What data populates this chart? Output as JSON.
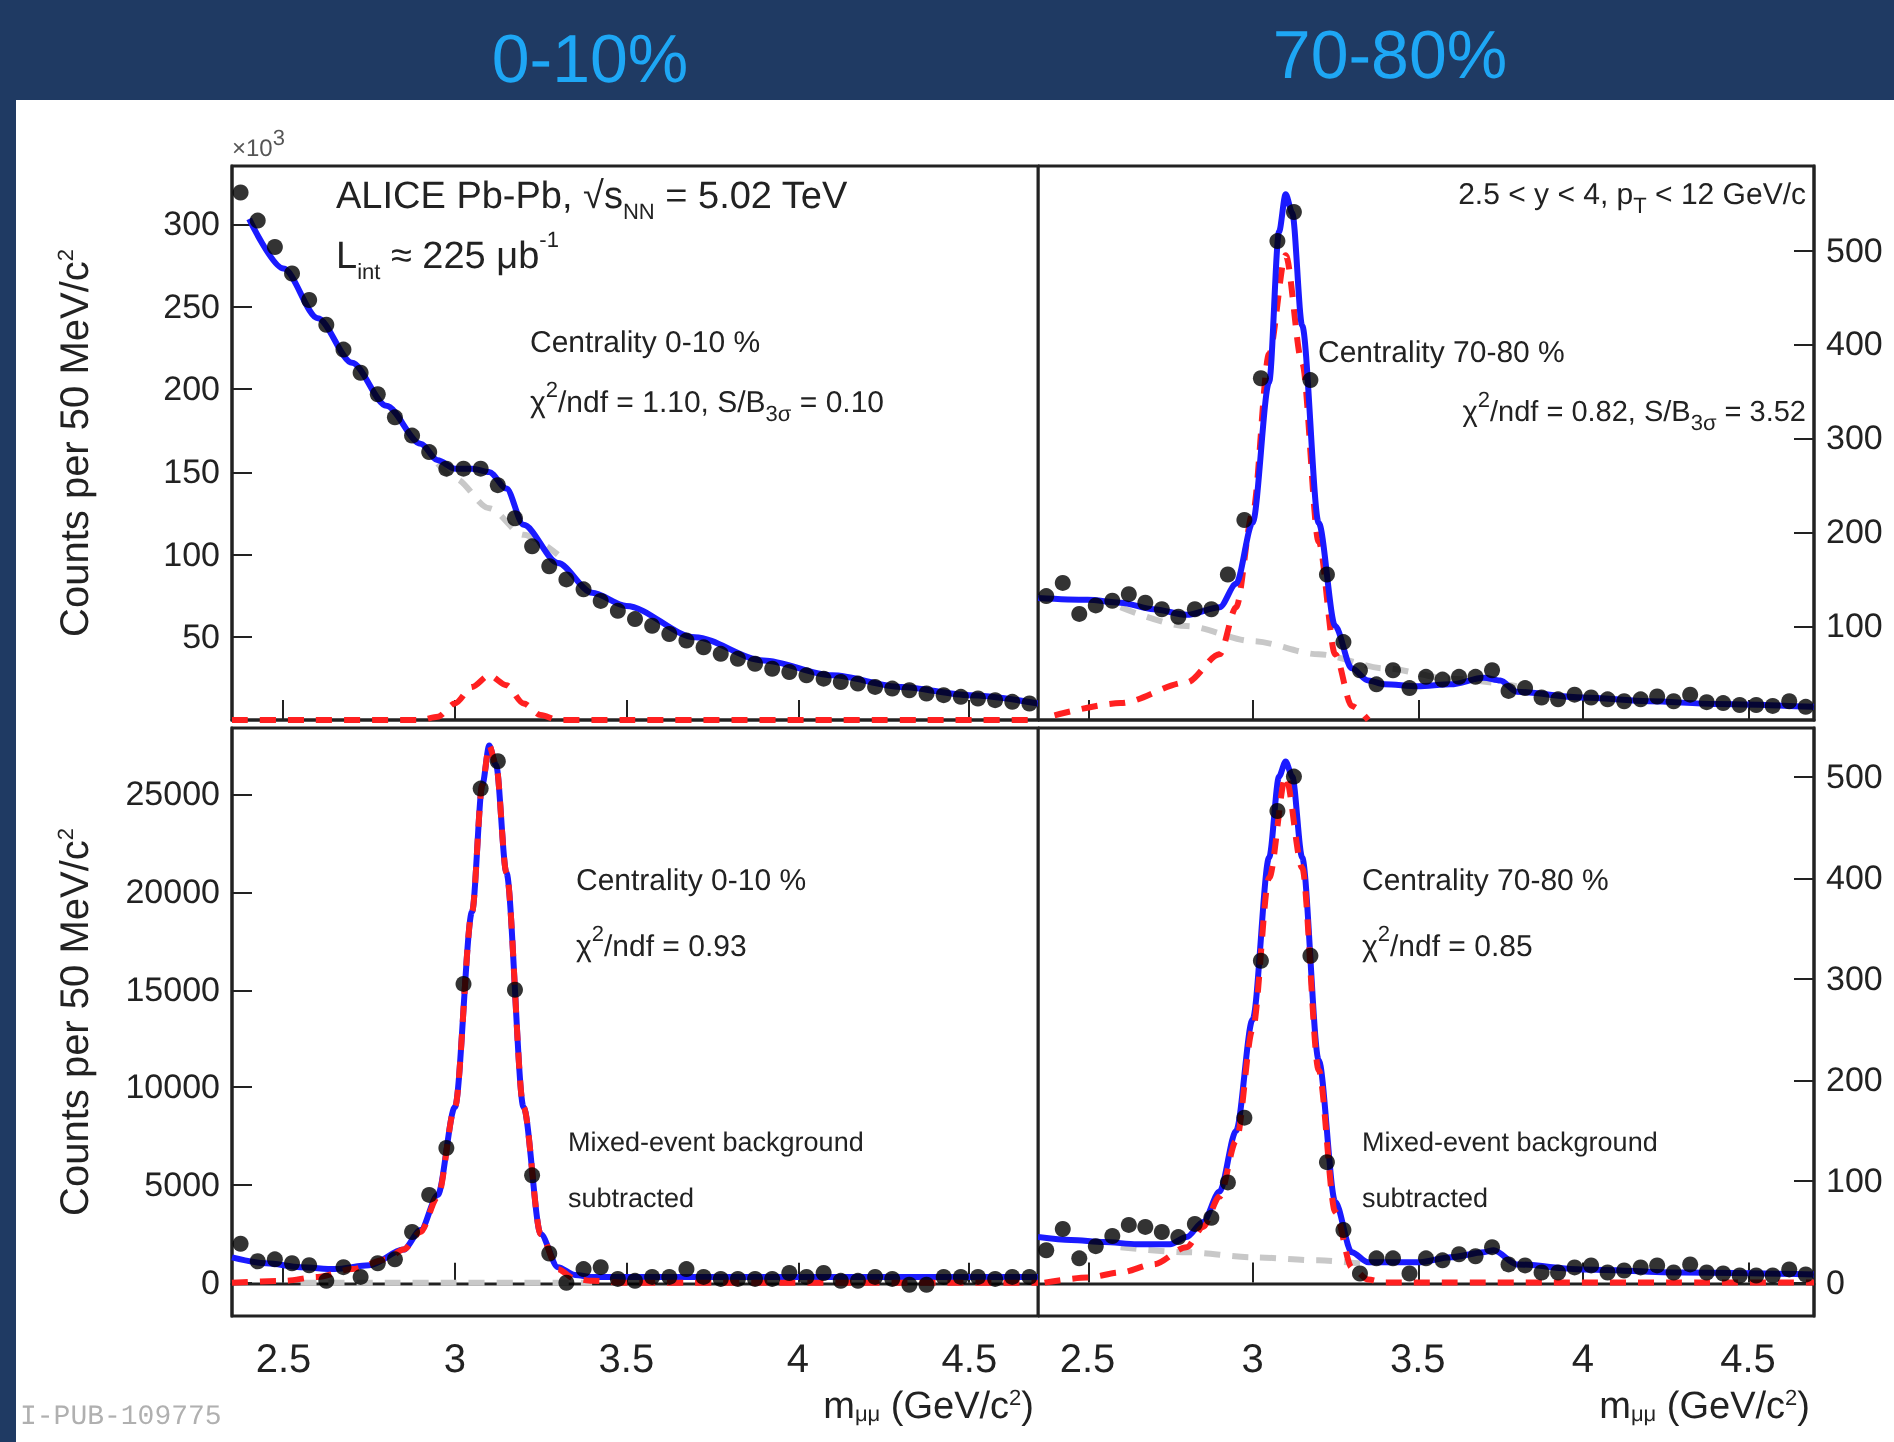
{
  "chart_data": [
    {
      "type": "scatter",
      "title": "0-10%",
      "ylabel": "Counts per 50 MeV/c$^{2}$",
      "tick_labels": "y",
      "annotations": [
        "ALICE Pb-Pb, √s$_{NN}$ = 5.02 TeV",
        "L$_{int}$ ≈ 225 μb$^{-1}$",
        "Centrality 0-10 %",
        "χ$^{2}$/ndf = 1.10, S/B$_{3σ}$ = 0.10",
        "×10$^{3}$"
      ],
      "xlim": [
        2.35,
        4.7
      ],
      "xticks": [
        2.5,
        3,
        3.5,
        4,
        4.5
      ],
      "ylim": [
        0,
        335
      ],
      "yticks": [
        50,
        100,
        150,
        200,
        250,
        300
      ],
      "x": [
        2.375,
        2.425,
        2.475,
        2.525,
        2.575,
        2.625,
        2.675,
        2.725,
        2.775,
        2.825,
        2.875,
        2.925,
        2.975,
        3.025,
        3.075,
        3.125,
        3.175,
        3.225,
        3.275,
        3.325,
        3.375,
        3.425,
        3.475,
        3.525,
        3.575,
        3.625,
        3.675,
        3.725,
        3.775,
        3.825,
        3.875,
        3.925,
        3.975,
        4.025,
        4.075,
        4.125,
        4.175,
        4.225,
        4.275,
        4.325,
        4.375,
        4.425,
        4.475,
        4.525,
        4.575,
        4.625,
        4.675
      ],
      "series": [
        {
          "type": "line",
          "color": "#c8c8c8",
          "line_style": "dashed",
          "x": [
            2.95,
            3.0,
            3.1,
            3.2,
            3.3
          ],
          "values": [
            155,
            146,
            128,
            112,
            100
          ]
        },
        {
          "type": "line",
          "color": "#ff2020",
          "line_style": "dashed",
          "x": [
            2.35,
            2.9,
            2.95,
            3.0,
            3.05,
            3.1,
            3.15,
            3.2,
            3.25,
            3.3,
            4.7
          ],
          "values": [
            0,
            0,
            2,
            10,
            20,
            27,
            21,
            10,
            3,
            0,
            0
          ]
        },
        {
          "type": "line",
          "color": "#1a1aff",
          "line_style": "solid",
          "x": [
            2.4,
            2.5,
            2.6,
            2.7,
            2.8,
            2.9,
            2.95,
            3.0,
            3.05,
            3.1,
            3.15,
            3.2,
            3.3,
            3.4,
            3.5,
            3.7,
            3.9,
            4.1,
            4.3,
            4.5,
            4.7
          ],
          "values": [
            303,
            273,
            243,
            216,
            190,
            167,
            157,
            152,
            152,
            150,
            140,
            118,
            95,
            77,
            69,
            50,
            36,
            27,
            20,
            15,
            10
          ]
        },
        {
          "color": "#000000",
          "marker": "circle",
          "values": [
            319,
            302,
            286,
            270,
            254,
            239,
            224,
            210,
            197,
            183,
            172,
            162,
            152,
            152,
            152,
            142,
            122,
            105,
            93,
            85,
            79,
            72,
            66,
            61,
            57,
            52,
            48,
            44,
            40,
            37,
            34,
            31,
            29,
            27,
            25,
            23,
            22,
            20,
            19,
            18,
            16,
            15,
            14,
            13,
            12,
            11,
            10
          ]
        }
      ]
    },
    {
      "type": "scatter",
      "title": "70-80%",
      "tick_labels": "y",
      "annotations": [
        "2.5 < y < 4, p$_{T}$ < 12 GeV/c",
        "Centrality 70-80 %",
        "χ$^{2}$/ndf = 0.82, S/B$_{3σ}$ = 3.52"
      ],
      "xlim": [
        2.35,
        4.7
      ],
      "xticks": [
        2.5,
        3,
        3.5,
        4,
        4.5
      ],
      "y2lim": [
        0,
        590
      ],
      "y2ticks": [
        100,
        200,
        300,
        400,
        500
      ],
      "x": [
        2.375,
        2.425,
        2.475,
        2.525,
        2.575,
        2.625,
        2.675,
        2.725,
        2.775,
        2.825,
        2.875,
        2.925,
        2.975,
        3.025,
        3.075,
        3.125,
        3.175,
        3.225,
        3.275,
        3.325,
        3.375,
        3.425,
        3.475,
        3.525,
        3.575,
        3.625,
        3.675,
        3.725,
        3.775,
        3.825,
        3.875,
        3.925,
        3.975,
        4.025,
        4.075,
        4.125,
        4.175,
        4.225,
        4.275,
        4.325,
        4.375,
        4.425,
        4.475,
        4.525,
        4.575,
        4.625,
        4.675
      ],
      "series": [
        {
          "type": "line",
          "axis": "y2",
          "color": "#c8c8c8",
          "line_style": "dashed",
          "x": [
            2.6,
            2.8,
            3.0,
            3.2,
            3.4,
            3.6,
            3.8
          ],
          "values": [
            120,
            100,
            84,
            70,
            55,
            44,
            36
          ]
        },
        {
          "type": "line",
          "axis": "y2",
          "color": "#ff2020",
          "line_style": "dashed",
          "x": [
            2.4,
            2.6,
            2.8,
            2.9,
            2.95,
            3.0,
            3.05,
            3.1,
            3.15,
            3.2,
            3.25,
            3.3,
            3.35
          ],
          "values": [
            5,
            18,
            40,
            70,
            120,
            220,
            390,
            495,
            380,
            190,
            70,
            15,
            0
          ]
        },
        {
          "type": "line",
          "axis": "y2",
          "color": "#1a1aff",
          "line_style": "solid",
          "x": [
            2.35,
            2.5,
            2.6,
            2.7,
            2.8,
            2.9,
            2.95,
            3.0,
            3.05,
            3.08,
            3.1,
            3.12,
            3.15,
            3.2,
            3.25,
            3.3,
            3.35,
            3.4,
            3.5,
            3.6,
            3.7,
            3.75,
            3.8,
            4.0,
            4.2,
            4.4,
            4.7
          ],
          "values": [
            130,
            128,
            125,
            118,
            112,
            120,
            145,
            210,
            360,
            520,
            560,
            540,
            420,
            210,
            100,
            55,
            42,
            38,
            36,
            38,
            45,
            42,
            30,
            24,
            20,
            17,
            14
          ]
        },
        {
          "axis": "y2",
          "color": "#000000",
          "marker": "circle",
          "values": [
            132,
            146,
            113,
            122,
            127,
            134,
            125,
            118,
            110,
            118,
            118,
            155,
            213,
            364,
            510,
            541,
            362,
            155,
            83,
            53,
            38,
            53,
            34,
            46,
            43,
            46,
            46,
            53,
            31,
            34,
            24,
            22,
            27,
            24,
            22,
            20,
            22,
            25,
            20,
            27,
            19,
            18,
            16,
            16,
            15,
            20,
            14
          ]
        }
      ]
    },
    {
      "type": "scatter",
      "ylabel": "Counts per 50 MeV/c$^{2}$",
      "xlabel": "m$_{μμ}$ (GeV/c$^{2}$)",
      "annotations": [
        "Centrality 0-10 %",
        "χ$^{2}$/ndf = 0.93",
        "Mixed-event background\nsubtracted",
        "I-PUB-109775"
      ],
      "xlim": [
        2.35,
        4.7
      ],
      "xticks": [
        2.5,
        3,
        3.5,
        4,
        4.5
      ],
      "ylim": [
        -1700,
        28400
      ],
      "yticks": [
        0,
        5000,
        10000,
        15000,
        20000,
        25000
      ],
      "x": [
        2.375,
        2.425,
        2.475,
        2.525,
        2.575,
        2.625,
        2.675,
        2.725,
        2.775,
        2.825,
        2.875,
        2.925,
        2.975,
        3.025,
        3.075,
        3.125,
        3.175,
        3.225,
        3.275,
        3.325,
        3.375,
        3.425,
        3.475,
        3.525,
        3.575,
        3.625,
        3.675,
        3.725,
        3.775,
        3.825,
        3.875,
        3.925,
        3.975,
        4.025,
        4.075,
        4.125,
        4.175,
        4.225,
        4.275,
        4.325,
        4.375,
        4.425,
        4.475,
        4.525,
        4.575,
        4.625,
        4.675
      ],
      "series": [
        {
          "type": "line",
          "color": "#c8c8c8",
          "line_style": "dashed",
          "x": [
            2.55,
            2.8,
            3.0,
            3.2,
            3.4
          ],
          "values": [
            0,
            0,
            0,
            0,
            0
          ]
        },
        {
          "type": "line",
          "color": "#1a1aff",
          "line_style": "solid",
          "x": [
            2.35,
            2.45,
            2.55,
            2.65,
            2.75,
            2.85,
            2.9,
            2.95,
            3.0,
            3.05,
            3.08,
            3.1,
            3.12,
            3.15,
            3.2,
            3.25,
            3.3,
            3.35,
            3.4,
            3.7,
            4.7
          ],
          "values": [
            1300,
            1000,
            800,
            700,
            900,
            1700,
            2700,
            4500,
            9000,
            19000,
            25500,
            27500,
            26500,
            21000,
            9000,
            2500,
            800,
            400,
            300,
            300,
            300
          ]
        },
        {
          "type": "line",
          "color": "#ff2020",
          "line_style": "dashed",
          "x": [
            2.35,
            2.5,
            2.6,
            2.7,
            2.8,
            2.85,
            2.9,
            2.95,
            3.0,
            3.05,
            3.08,
            3.1,
            3.12,
            3.15,
            3.2,
            3.25,
            3.3,
            3.35,
            3.4,
            3.5,
            4.7
          ],
          "values": [
            0,
            100,
            300,
            700,
            1200,
            1700,
            2600,
            4400,
            9000,
            19000,
            25500,
            27500,
            26500,
            21000,
            9000,
            2500,
            700,
            200,
            100,
            0,
            0
          ]
        },
        {
          "color": "#000000",
          "marker": "circle",
          "values": [
            2000,
            1100,
            1200,
            1000,
            900,
            100,
            800,
            300,
            1000,
            1200,
            2600,
            4500,
            6900,
            15300,
            25300,
            26700,
            15000,
            5500,
            1500,
            0,
            700,
            800,
            200,
            100,
            300,
            300,
            700,
            300,
            200,
            200,
            200,
            200,
            500,
            300,
            500,
            100,
            100,
            300,
            200,
            -100,
            -100,
            300,
            300,
            300,
            200,
            300,
            300
          ]
        }
      ]
    },
    {
      "type": "scatter",
      "xlabel": "m$_{μμ}$ (GeV/c$^{2}$)",
      "annotations": [
        "Centrality 70-80 %",
        "χ$^{2}$/ndf = 0.85",
        "Mixed-event background\nsubtracted"
      ],
      "xlim": [
        2.35,
        4.7
      ],
      "xticks": [
        2.5,
        3,
        3.5,
        4,
        4.5
      ],
      "y2lim": [
        -33,
        548
      ],
      "y2ticks": [
        0,
        100,
        200,
        300,
        400,
        500
      ],
      "x": [
        2.375,
        2.425,
        2.475,
        2.525,
        2.575,
        2.625,
        2.675,
        2.725,
        2.775,
        2.825,
        2.875,
        2.925,
        2.975,
        3.025,
        3.075,
        3.125,
        3.175,
        3.225,
        3.275,
        3.325,
        3.375,
        3.425,
        3.475,
        3.525,
        3.575,
        3.625,
        3.675,
        3.725,
        3.775,
        3.825,
        3.875,
        3.925,
        3.975,
        4.025,
        4.075,
        4.125,
        4.175,
        4.225,
        4.275,
        4.325,
        4.375,
        4.425,
        4.475,
        4.525,
        4.575,
        4.625,
        4.675
      ],
      "series": [
        {
          "type": "line",
          "axis": "y2",
          "color": "#c8c8c8",
          "line_style": "dashed",
          "x": [
            2.6,
            2.8,
            3.0,
            3.2,
            3.35
          ],
          "values": [
            35,
            30,
            25,
            22,
            18
          ]
        },
        {
          "type": "line",
          "axis": "y2",
          "color": "#1a1aff",
          "line_style": "solid",
          "x": [
            2.35,
            2.45,
            2.55,
            2.65,
            2.75,
            2.8,
            2.85,
            2.9,
            2.95,
            3.0,
            3.05,
            3.08,
            3.1,
            3.12,
            3.15,
            3.2,
            3.25,
            3.3,
            3.35,
            3.4,
            3.5,
            3.6,
            3.7,
            3.73,
            3.8,
            4.0,
            4.3,
            4.7
          ],
          "values": [
            45,
            42,
            40,
            38,
            38,
            45,
            60,
            90,
            150,
            260,
            420,
            500,
            515,
            500,
            420,
            220,
            80,
            30,
            20,
            20,
            20,
            25,
            30,
            32,
            18,
            13,
            10,
            8
          ]
        },
        {
          "type": "line",
          "axis": "y2",
          "color": "#ff2020",
          "line_style": "dashed",
          "x": [
            2.37,
            2.5,
            2.6,
            2.7,
            2.8,
            2.85,
            2.9,
            2.95,
            3.0,
            3.05,
            3.1,
            3.15,
            3.2,
            3.25,
            3.3,
            3.35,
            3.4,
            4.7
          ],
          "values": [
            0,
            5,
            10,
            18,
            35,
            55,
            85,
            140,
            250,
            400,
            500,
            410,
            210,
            70,
            15,
            3,
            0,
            0
          ]
        },
        {
          "axis": "y2",
          "color": "#000000",
          "marker": "circle",
          "values": [
            32,
            53,
            24,
            36,
            46,
            57,
            55,
            50,
            45,
            58,
            64,
            99,
            163,
            318,
            466,
            500,
            323,
            119,
            52,
            9,
            24,
            24,
            9,
            24,
            22,
            28,
            26,
            35,
            18,
            17,
            10,
            10,
            15,
            17,
            10,
            12,
            15,
            17,
            10,
            18,
            10,
            9,
            7,
            7,
            7,
            13,
            8
          ]
        }
      ]
    }
  ]
}
